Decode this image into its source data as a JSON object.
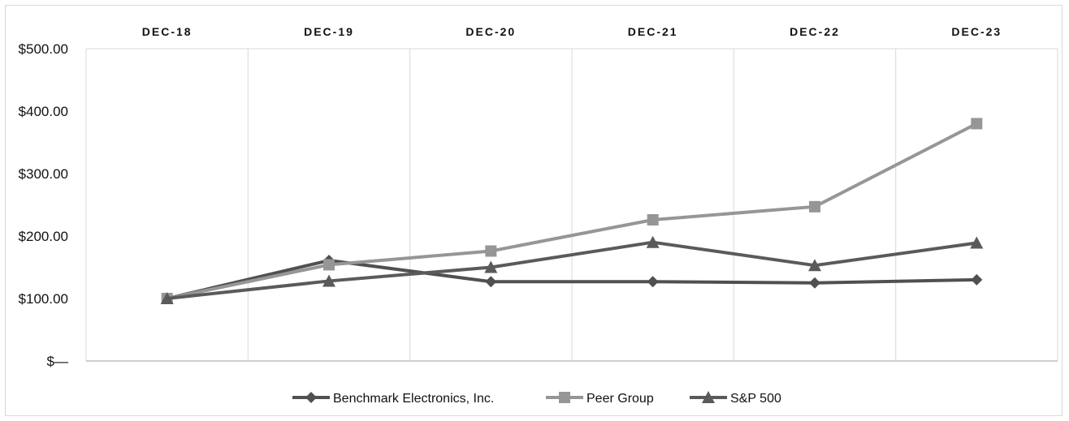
{
  "chart_data": {
    "type": "line",
    "title": "",
    "xlabel": "",
    "ylabel": "",
    "categories": [
      "DEC-18",
      "DEC-19",
      "DEC-20",
      "DEC-21",
      "DEC-22",
      "DEC-23"
    ],
    "y_tick_labels": [
      "$—",
      "$100.00",
      "$200.00",
      "$300.00",
      "$400.00",
      "$500.00"
    ],
    "y_ticks": [
      0,
      100,
      200,
      300,
      400,
      500
    ],
    "ylim": [
      0,
      500
    ],
    "x_axis_position": "top",
    "grid": "vertical",
    "legend": "bottom-center",
    "series": [
      {
        "name": "Benchmark Electronics, Inc.",
        "marker": "diamond",
        "color": "#505050",
        "values": [
          100,
          161,
          127,
          127,
          125,
          130
        ]
      },
      {
        "name": "Peer Group",
        "marker": "square",
        "color": "#969696",
        "values": [
          100,
          154,
          176,
          226,
          247,
          380
        ]
      },
      {
        "name": "S&P 500",
        "marker": "triangle",
        "color": "#5a5a5a",
        "values": [
          100,
          128,
          150,
          190,
          153,
          189
        ]
      }
    ]
  }
}
